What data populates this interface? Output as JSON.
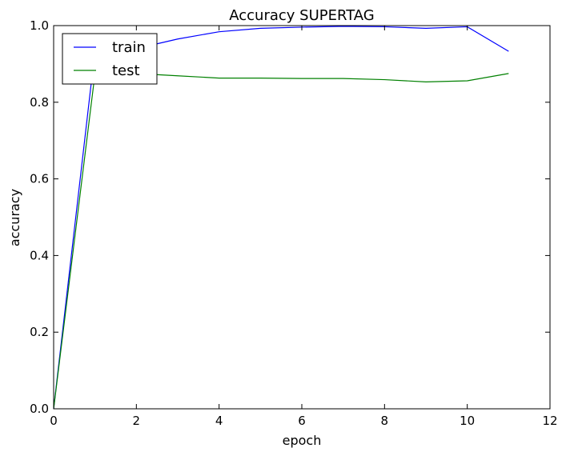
{
  "chart_data": {
    "type": "line",
    "title": "Accuracy SUPERTAG",
    "xlabel": "epoch",
    "ylabel": "accuracy",
    "xlim": [
      0,
      12
    ],
    "ylim": [
      0.0,
      1.0
    ],
    "xticks": [
      0,
      2,
      4,
      6,
      8,
      10,
      12
    ],
    "yticks": [
      0.0,
      0.2,
      0.4,
      0.6,
      0.8,
      1.0
    ],
    "xtick_labels": [
      "0",
      "2",
      "4",
      "6",
      "8",
      "10",
      "12"
    ],
    "ytick_labels": [
      "0.0",
      "0.2",
      "0.4",
      "0.6",
      "0.8",
      "1.0"
    ],
    "grid": false,
    "legend_position": "top-left",
    "x": [
      0,
      1,
      2,
      3,
      4,
      5,
      6,
      7,
      8,
      9,
      10,
      11
    ],
    "series": [
      {
        "name": "train",
        "color": "#0000ff",
        "values": [
          0.0,
          0.935,
          0.94,
          0.965,
          0.984,
          0.993,
          0.996,
          0.998,
          0.997,
          0.993,
          0.997,
          0.933
        ]
      },
      {
        "name": "test",
        "color": "#008000",
        "values": [
          0.0,
          0.875,
          0.875,
          0.869,
          0.863,
          0.863,
          0.862,
          0.862,
          0.859,
          0.853,
          0.856,
          0.875
        ]
      }
    ]
  }
}
